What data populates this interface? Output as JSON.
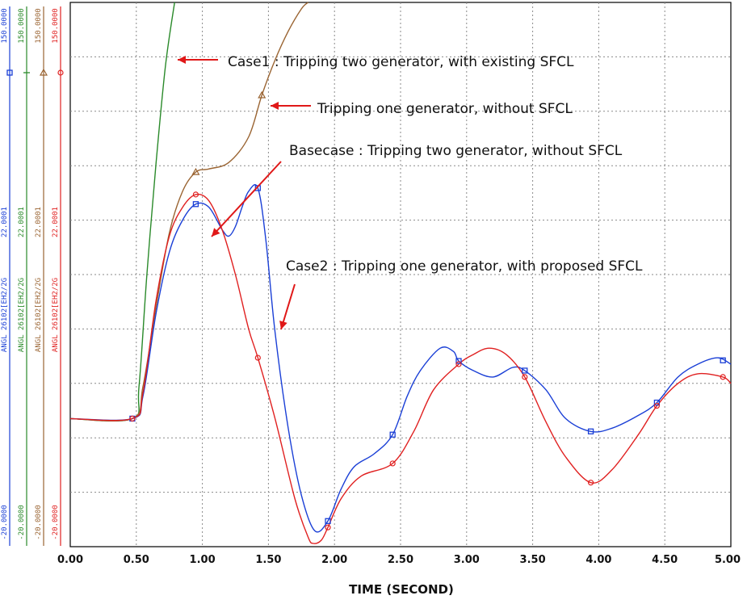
{
  "chart_data": {
    "type": "line",
    "xlabel": "TIME (SECOND)",
    "xlim": [
      0.0,
      5.0
    ],
    "ylim": [
      -20.0,
      150.0
    ],
    "x_ticks": [
      "0.00",
      "0.50",
      "1.00",
      "1.50",
      "2.00",
      "2.50",
      "3.00",
      "3.50",
      "4.00",
      "4.50",
      "5.00"
    ],
    "grid": true,
    "annotations": [
      {
        "text": "Case1 : Tripping two generator, with existing SFCL"
      },
      {
        "text": "Tripping one generator, without SFCL"
      },
      {
        "text": "Basecase : Tripping two generator, without SFCL"
      },
      {
        "text": "Case2 : Tripping one generator, with proposed SFCL"
      }
    ],
    "axis_channels": [
      {
        "label": "ANGL 26102[EH2/2G",
        "mid": "22.0001",
        "min": "-20.0000",
        "max": "150.0000",
        "color": "#1a3fd6",
        "marker": "square"
      },
      {
        "label": "ANGL 26102[EH2/2G",
        "mid": "22.0001",
        "min": "-20.0000",
        "max": "150.0000",
        "color": "#2a8a2a",
        "marker": "plus"
      },
      {
        "label": "ANGL 26102[EH2/2G",
        "mid": "22.0001",
        "min": "-20.0000",
        "max": "150.0000",
        "color": "#9a6432",
        "marker": "triangle"
      },
      {
        "label": "ANGL 26102[EH2/2G",
        "mid": "22.0001",
        "min": "-20.0000",
        "max": "150.0000",
        "color": "#e02020",
        "marker": "circle"
      }
    ],
    "series": [
      {
        "color": "#2a8a2a",
        "marker": "plus",
        "x": [
          0.0,
          0.47,
          0.52,
          0.58,
          0.65,
          0.72,
          0.79
        ],
        "y": [
          20,
          20,
          30,
          65,
          100,
          130,
          150
        ]
      },
      {
        "color": "#9a6432",
        "marker": "triangle",
        "x": [
          0.0,
          0.47,
          0.55,
          0.65,
          0.75,
          0.85,
          0.95,
          1.05,
          1.2,
          1.35,
          1.45,
          1.55,
          1.65,
          1.75,
          1.8
        ],
        "y": [
          20,
          20,
          30,
          55,
          78,
          91,
          97,
          98,
          100,
          108,
          121,
          132,
          141,
          148,
          150
        ]
      },
      {
        "color": "#1a3fd6",
        "marker": "square",
        "x": [
          0.0,
          0.47,
          0.55,
          0.65,
          0.75,
          0.85,
          0.95,
          1.05,
          1.15,
          1.2,
          1.25,
          1.3,
          1.35,
          1.42,
          1.48,
          1.55,
          1.65,
          1.75,
          1.85,
          1.95,
          2.05,
          2.15,
          2.3,
          2.44,
          2.55,
          2.65,
          2.8,
          2.9,
          2.94,
          3.05,
          3.2,
          3.35,
          3.44,
          3.6,
          3.75,
          3.94,
          4.1,
          4.3,
          4.44,
          4.6,
          4.75,
          4.9,
          5.0
        ],
        "y": [
          20,
          20,
          27,
          53,
          72,
          82,
          87,
          86,
          79,
          77,
          80,
          86,
          91,
          92,
          76,
          47,
          17,
          -4,
          -15,
          -12,
          -2,
          5,
          9,
          15,
          27,
          35,
          42,
          41,
          38,
          35,
          33,
          36,
          35,
          29,
          20,
          16,
          17,
          21,
          25,
          33,
          37,
          39,
          37
        ]
      },
      {
        "color": "#e02020",
        "marker": "circle",
        "x": [
          0.0,
          0.47,
          0.55,
          0.65,
          0.75,
          0.85,
          0.95,
          1.05,
          1.15,
          1.25,
          1.35,
          1.42,
          1.55,
          1.7,
          1.8,
          1.84,
          1.9,
          1.95,
          2.05,
          2.2,
          2.44,
          2.6,
          2.75,
          2.94,
          3.05,
          3.17,
          3.3,
          3.44,
          3.6,
          3.75,
          3.94,
          4.1,
          4.3,
          4.44,
          4.6,
          4.75,
          4.94,
          5.0
        ],
        "y": [
          20,
          20,
          28,
          57,
          77,
          86,
          90,
          88,
          79,
          65,
          48,
          39,
          20,
          -5,
          -17,
          -19,
          -18,
          -14,
          -5,
          2,
          6,
          16,
          29,
          37,
          40,
          42,
          40,
          33,
          19,
          8,
          0,
          4,
          15,
          24,
          31,
          34,
          33,
          31
        ]
      }
    ]
  }
}
